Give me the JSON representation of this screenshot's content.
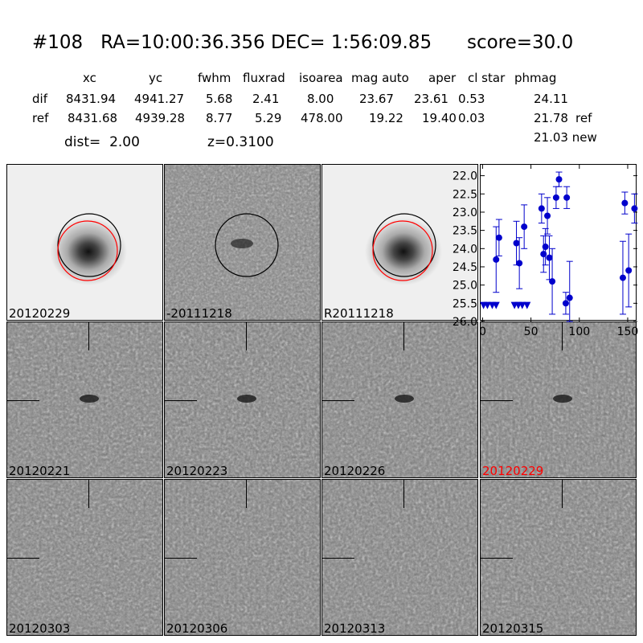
{
  "title": "#108   RA=10:00:36.356 DEC= 1:56:09.85      score=30.0",
  "table": {
    "headers": [
      "xc",
      "yc",
      "fwhm",
      "fluxrad",
      "isoarea",
      "mag auto",
      "aper",
      "cl star",
      "phmag"
    ],
    "rows": [
      {
        "label": "dif",
        "values": [
          "8431.94",
          "4941.27",
          "5.68",
          "2.41",
          "8.00",
          "23.67",
          "23.61",
          "0.53",
          "24.11"
        ],
        "suffix": ""
      },
      {
        "label": "ref",
        "values": [
          "8431.68",
          "4939.28",
          "8.77",
          "5.29",
          "478.00",
          "19.22",
          "19.40",
          "0.03",
          "21.78"
        ],
        "suffix": "ref"
      }
    ],
    "extra": "21.03 new"
  },
  "dist_text": "dist=  2.00",
  "z_text": "z=0.3100",
  "top_panels": [
    {
      "label": "20120229",
      "kind": "galaxy",
      "circles": [
        "black",
        "red"
      ]
    },
    {
      "label": "-20111218",
      "kind": "noise",
      "circles": [
        "black"
      ]
    },
    {
      "label": "R20111218",
      "kind": "galaxy",
      "circles": [
        "black",
        "red"
      ]
    }
  ],
  "stamps": [
    {
      "label": "20120221",
      "highlight": false
    },
    {
      "label": "20120223",
      "highlight": false
    },
    {
      "label": "20120226",
      "highlight": false
    },
    {
      "label": "20120229",
      "highlight": true
    },
    {
      "label": "20120303",
      "highlight": false
    },
    {
      "label": "20120306",
      "highlight": false
    },
    {
      "label": "20120313",
      "highlight": false
    },
    {
      "label": "20120315",
      "highlight": false
    }
  ],
  "chart_data": {
    "type": "scatter",
    "title": "",
    "xlabel": "",
    "ylabel": "",
    "xlim": [
      -2,
      160
    ],
    "ylim": [
      26.0,
      21.7
    ],
    "y_inverted": true,
    "xticks": [
      0,
      50,
      100,
      150
    ],
    "yticks": [
      22.0,
      22.5,
      23.0,
      23.5,
      24.0,
      24.5,
      25.0,
      25.5,
      26.0
    ],
    "ytick_labels": [
      "22.0",
      "22.5",
      "23.0",
      "23.5",
      "24.0",
      "24.5",
      "25.0",
      "25.5",
      "26.0"
    ],
    "color": "#0000cc",
    "points": [
      {
        "x": 14,
        "y": 24.3,
        "err": 0.9
      },
      {
        "x": 17,
        "y": 23.7,
        "err": 0.5
      },
      {
        "x": 35,
        "y": 23.85,
        "err": 0.6
      },
      {
        "x": 38,
        "y": 24.4,
        "err": 0.7
      },
      {
        "x": 43,
        "y": 23.4,
        "err": 0.6
      },
      {
        "x": 61,
        "y": 22.9,
        "err": 0.4
      },
      {
        "x": 63,
        "y": 24.15,
        "err": 0.5
      },
      {
        "x": 65,
        "y": 23.95,
        "err": 0.5
      },
      {
        "x": 67,
        "y": 23.1,
        "err": 0.5
      },
      {
        "x": 69,
        "y": 24.25,
        "err": 0.6
      },
      {
        "x": 72,
        "y": 24.9,
        "err": 0.9
      },
      {
        "x": 76,
        "y": 22.6,
        "err": 0.3
      },
      {
        "x": 79,
        "y": 22.1,
        "err": 0.2
      },
      {
        "x": 86,
        "y": 25.5,
        "err": 0.3
      },
      {
        "x": 87,
        "y": 22.6,
        "err": 0.3
      },
      {
        "x": 90,
        "y": 25.35,
        "err": 1.0
      },
      {
        "x": 145,
        "y": 24.8,
        "err": 1.0
      },
      {
        "x": 147,
        "y": 22.75,
        "err": 0.3
      },
      {
        "x": 151,
        "y": 24.6,
        "err": 1.0
      },
      {
        "x": 157,
        "y": 22.9,
        "err": 0.4
      }
    ],
    "upper_limits": [
      {
        "x": 1,
        "y": 25.55
      },
      {
        "x": 5,
        "y": 25.55
      },
      {
        "x": 10,
        "y": 25.55
      },
      {
        "x": 14,
        "y": 25.55
      },
      {
        "x": 33,
        "y": 25.55
      },
      {
        "x": 37,
        "y": 25.55
      },
      {
        "x": 41,
        "y": 25.55
      },
      {
        "x": 46,
        "y": 25.55
      }
    ]
  }
}
